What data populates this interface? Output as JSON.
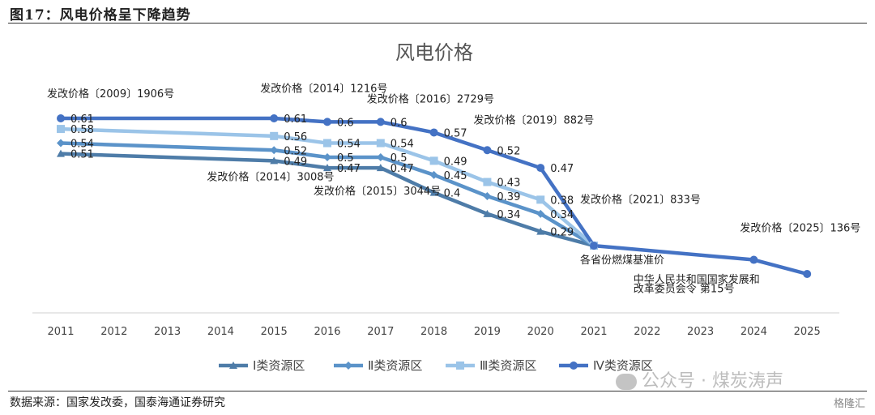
{
  "figure_title": "图17：风电价格呈下降趋势",
  "source": "数据来源：国家发改委，国泰海通证券研究",
  "watermark": "公众号 · 煤炭涛声",
  "logo": "格隆汇",
  "chart_data": {
    "type": "line",
    "title": "风电价格",
    "xlabel": "",
    "ylabel": "",
    "ylim": [
      0,
      0.7
    ],
    "categories": [
      "2011",
      "2012",
      "2013",
      "2014",
      "2015",
      "2016",
      "2017",
      "2018",
      "2019",
      "2020",
      "2021",
      "2022",
      "2023",
      "2024",
      "2025"
    ],
    "series": [
      {
        "name": "Ⅰ类资源区",
        "color": "#4e7ca8",
        "marker": "triangle",
        "points": [
          [
            "2011",
            0.51
          ],
          [
            "2015",
            0.49
          ],
          [
            "2016",
            0.47
          ],
          [
            "2017",
            0.47
          ],
          [
            "2018",
            0.4
          ],
          [
            "2019",
            0.34
          ],
          [
            "2020",
            0.29
          ],
          [
            "2021",
            0.25
          ]
        ],
        "labels": [
          "0.51",
          "0.49",
          "0.47",
          "0.47",
          "0.4",
          "0.34",
          "0.29",
          null
        ]
      },
      {
        "name": "Ⅱ类资源区",
        "color": "#5b93c9",
        "marker": "diamond",
        "points": [
          [
            "2011",
            0.54
          ],
          [
            "2015",
            0.52
          ],
          [
            "2016",
            0.5
          ],
          [
            "2017",
            0.5
          ],
          [
            "2018",
            0.45
          ],
          [
            "2019",
            0.39
          ],
          [
            "2020",
            0.34
          ],
          [
            "2021",
            0.25
          ]
        ],
        "labels": [
          "0.54",
          "0.52",
          "0.5",
          "0.5",
          "0.45",
          "0.39",
          "0.34",
          null
        ]
      },
      {
        "name": "Ⅲ类资源区",
        "color": "#9bc4e8",
        "marker": "square",
        "points": [
          [
            "2011",
            0.58
          ],
          [
            "2015",
            0.56
          ],
          [
            "2016",
            0.54
          ],
          [
            "2017",
            0.54
          ],
          [
            "2018",
            0.49
          ],
          [
            "2019",
            0.43
          ],
          [
            "2020",
            0.38
          ],
          [
            "2021",
            0.25
          ]
        ],
        "labels": [
          "0.58",
          "0.56",
          "0.54",
          "0.54",
          "0.49",
          "0.43",
          "0.38",
          null
        ]
      },
      {
        "name": "Ⅳ类资源区",
        "color": "#4472c4",
        "marker": "circle",
        "points": [
          [
            "2011",
            0.61
          ],
          [
            "2015",
            0.61
          ],
          [
            "2016",
            0.6
          ],
          [
            "2017",
            0.6
          ],
          [
            "2018",
            0.57
          ],
          [
            "2019",
            0.52
          ],
          [
            "2020",
            0.47
          ],
          [
            "2021",
            0.25
          ],
          [
            "2024",
            0.21
          ],
          [
            "2025",
            0.17
          ]
        ],
        "labels": [
          "0.61",
          "0.61",
          "0.6",
          "0.6",
          "0.57",
          "0.52",
          "0.47",
          null,
          null,
          null
        ]
      }
    ],
    "annotations": [
      {
        "text": "发改价格〔2009〕1906号",
        "year": "2011",
        "value": 0.67
      },
      {
        "text": "发改价格〔2014〕1216号",
        "year": "2015",
        "value": 0.685
      },
      {
        "text": "发改价格〔2016〕2729号",
        "year": "2017",
        "value": 0.655
      },
      {
        "text": "发改价格〔2019〕882号",
        "year": "2019",
        "value": 0.595
      },
      {
        "text": "发改价格〔2014〕3008号",
        "year": "2014",
        "value": 0.435
      },
      {
        "text": "发改价格〔2015〕3044号",
        "year": "2016",
        "value": 0.395
      },
      {
        "text": "发改价格〔2021〕833号",
        "year": "2021",
        "value": 0.37
      },
      {
        "text": "发改价格〔2025〕136号",
        "year": "2024",
        "value": 0.29
      },
      {
        "text": "各省份燃煤基准价",
        "year": "2021",
        "value": 0.2
      },
      {
        "text": "中华人民共和国国家发展和",
        "year": "2022",
        "value": 0.145
      },
      {
        "text": "改革委员会令 第15号",
        "year": "2022",
        "value": 0.118
      }
    ]
  }
}
